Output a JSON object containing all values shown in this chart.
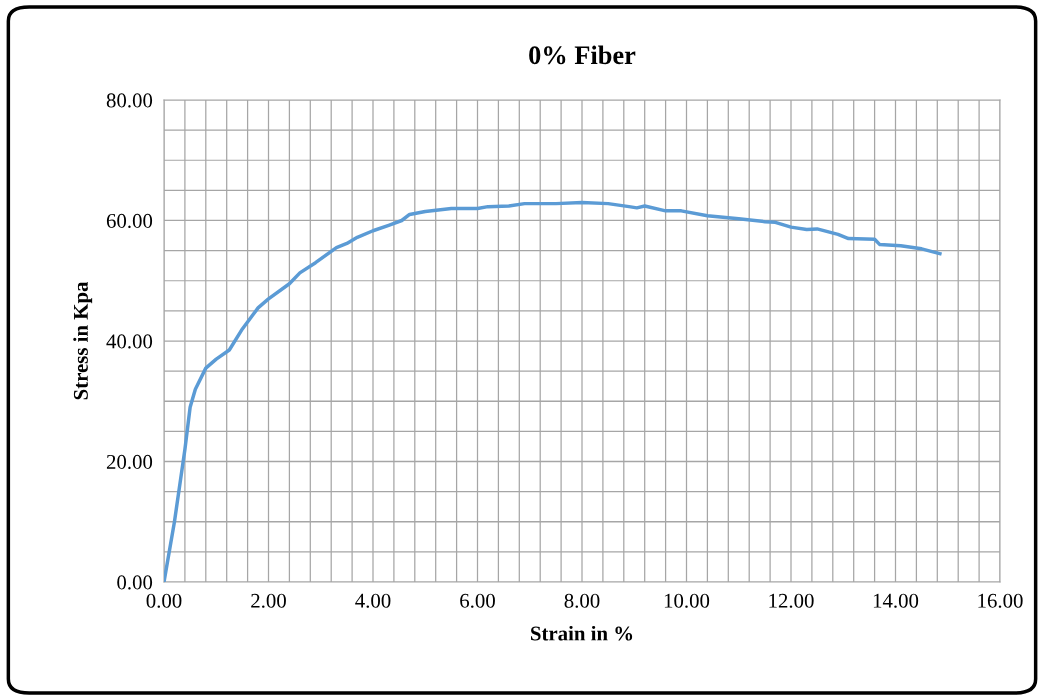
{
  "chart_data": {
    "type": "line",
    "title": "0% Fiber",
    "xlabel": "Strain in %",
    "ylabel": "Stress in Kpa",
    "x": [
      0,
      0.2,
      0.4,
      0.5,
      0.6,
      0.8,
      1.0,
      1.25,
      1.5,
      1.8,
      2.0,
      2.4,
      2.6,
      2.9,
      3.3,
      3.5,
      3.7,
      4.0,
      4.3,
      4.55,
      4.7,
      5.0,
      5.5,
      6.0,
      6.2,
      6.6,
      6.9,
      7.5,
      8.0,
      8.5,
      8.9,
      9.05,
      9.2,
      9.6,
      9.9,
      10.4,
      11.0,
      11.5,
      11.7,
      12.0,
      12.3,
      12.5,
      12.9,
      13.1,
      13.6,
      13.7,
      14.1,
      14.5,
      14.85
    ],
    "series": [
      {
        "color": "#5b9bd5",
        "values": [
          0,
          10,
          22,
          29,
          32,
          35.5,
          37,
          38.5,
          42,
          45.5,
          47,
          49.5,
          51.3,
          53,
          55.5,
          56.2,
          57.2,
          58.3,
          59.2,
          60,
          61,
          61.5,
          62,
          62,
          62.3,
          62.4,
          62.8,
          62.8,
          63,
          62.8,
          62.3,
          62.1,
          62.4,
          61.6,
          61.6,
          60.8,
          60.3,
          59.8,
          59.7,
          58.9,
          58.5,
          58.6,
          57.7,
          57,
          56.9,
          56,
          55.8,
          55.3,
          54.5
        ]
      }
    ],
    "xlim": [
      0,
      16
    ],
    "ylim": [
      0,
      80
    ],
    "xticks": [
      {
        "value": 0,
        "label": "0.00"
      },
      {
        "value": 0.4,
        "label": null
      },
      {
        "value": 0.8,
        "label": null
      },
      {
        "value": 1.2,
        "label": null
      },
      {
        "value": 1.6,
        "label": null
      },
      {
        "value": 2,
        "label": "2.00"
      },
      {
        "value": 2.4,
        "label": null
      },
      {
        "value": 2.8,
        "label": null
      },
      {
        "value": 3.2,
        "label": null
      },
      {
        "value": 3.6,
        "label": null
      },
      {
        "value": 4,
        "label": "4.00"
      },
      {
        "value": 4.4,
        "label": null
      },
      {
        "value": 4.8,
        "label": null
      },
      {
        "value": 5.2,
        "label": null
      },
      {
        "value": 5.6,
        "label": null
      },
      {
        "value": 6,
        "label": "6.00"
      },
      {
        "value": 6.4,
        "label": null
      },
      {
        "value": 6.8,
        "label": null
      },
      {
        "value": 7.2,
        "label": null
      },
      {
        "value": 7.6,
        "label": null
      },
      {
        "value": 8,
        "label": "8.00"
      },
      {
        "value": 8.4,
        "label": null
      },
      {
        "value": 8.8,
        "label": null
      },
      {
        "value": 9.2,
        "label": null
      },
      {
        "value": 9.6,
        "label": null
      },
      {
        "value": 10,
        "label": "10.00"
      },
      {
        "value": 10.4,
        "label": null
      },
      {
        "value": 10.8,
        "label": null
      },
      {
        "value": 11.2,
        "label": null
      },
      {
        "value": 11.6,
        "label": null
      },
      {
        "value": 12,
        "label": "12.00"
      },
      {
        "value": 12.4,
        "label": null
      },
      {
        "value": 12.8,
        "label": null
      },
      {
        "value": 13.2,
        "label": null
      },
      {
        "value": 13.6,
        "label": null
      },
      {
        "value": 14,
        "label": "14.00"
      },
      {
        "value": 14.4,
        "label": null
      },
      {
        "value": 14.8,
        "label": null
      },
      {
        "value": 15.2,
        "label": null
      },
      {
        "value": 15.6,
        "label": null
      },
      {
        "value": 16,
        "label": "16.00"
      }
    ],
    "yticks": [
      {
        "value": 0,
        "label": "0.00"
      },
      {
        "value": 5,
        "label": null
      },
      {
        "value": 10,
        "label": null
      },
      {
        "value": 15,
        "label": null
      },
      {
        "value": 20,
        "label": "20.00"
      },
      {
        "value": 25,
        "label": null
      },
      {
        "value": 30,
        "label": null
      },
      {
        "value": 35,
        "label": null
      },
      {
        "value": 40,
        "label": "40.00"
      },
      {
        "value": 45,
        "label": null
      },
      {
        "value": 50,
        "label": null
      },
      {
        "value": 55,
        "label": null
      },
      {
        "value": 60,
        "label": "60.00"
      },
      {
        "value": 65,
        "label": null
      },
      {
        "value": 70,
        "label": null
      },
      {
        "value": 75,
        "label": null
      },
      {
        "value": 80,
        "label": "80.00"
      }
    ],
    "grid": true,
    "marker": "none",
    "line_style": "solid"
  }
}
